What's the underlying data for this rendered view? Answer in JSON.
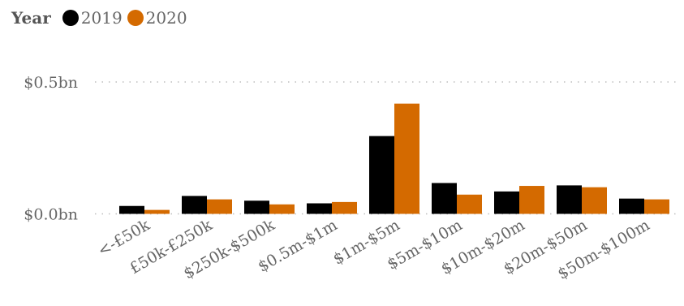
{
  "chart_data": {
    "type": "bar",
    "legend_title": "Year",
    "categories": [
      "<-£50k",
      "£50k-£250k",
      "$250k-$500k",
      "$0.5m-$1m",
      "$1m-$5m",
      "$5m-$10m",
      "$10m-$20m",
      "$20m-$50m",
      "$50m-$100m"
    ],
    "series": [
      {
        "name": "2019",
        "color": "#000000",
        "values": [
          0.03,
          0.068,
          0.05,
          0.04,
          0.295,
          0.117,
          0.085,
          0.108,
          0.058
        ]
      },
      {
        "name": "2020",
        "color": "#D46A00",
        "values": [
          0.015,
          0.055,
          0.036,
          0.045,
          0.418,
          0.073,
          0.106,
          0.101,
          0.055
        ]
      }
    ],
    "y_ticks": [
      {
        "value": 0.0,
        "label": "$0.0bn"
      },
      {
        "value": 0.5,
        "label": "$0.5bn"
      }
    ],
    "ylim": [
      0,
      0.5
    ],
    "grid": true,
    "legend_position": "top-left"
  }
}
